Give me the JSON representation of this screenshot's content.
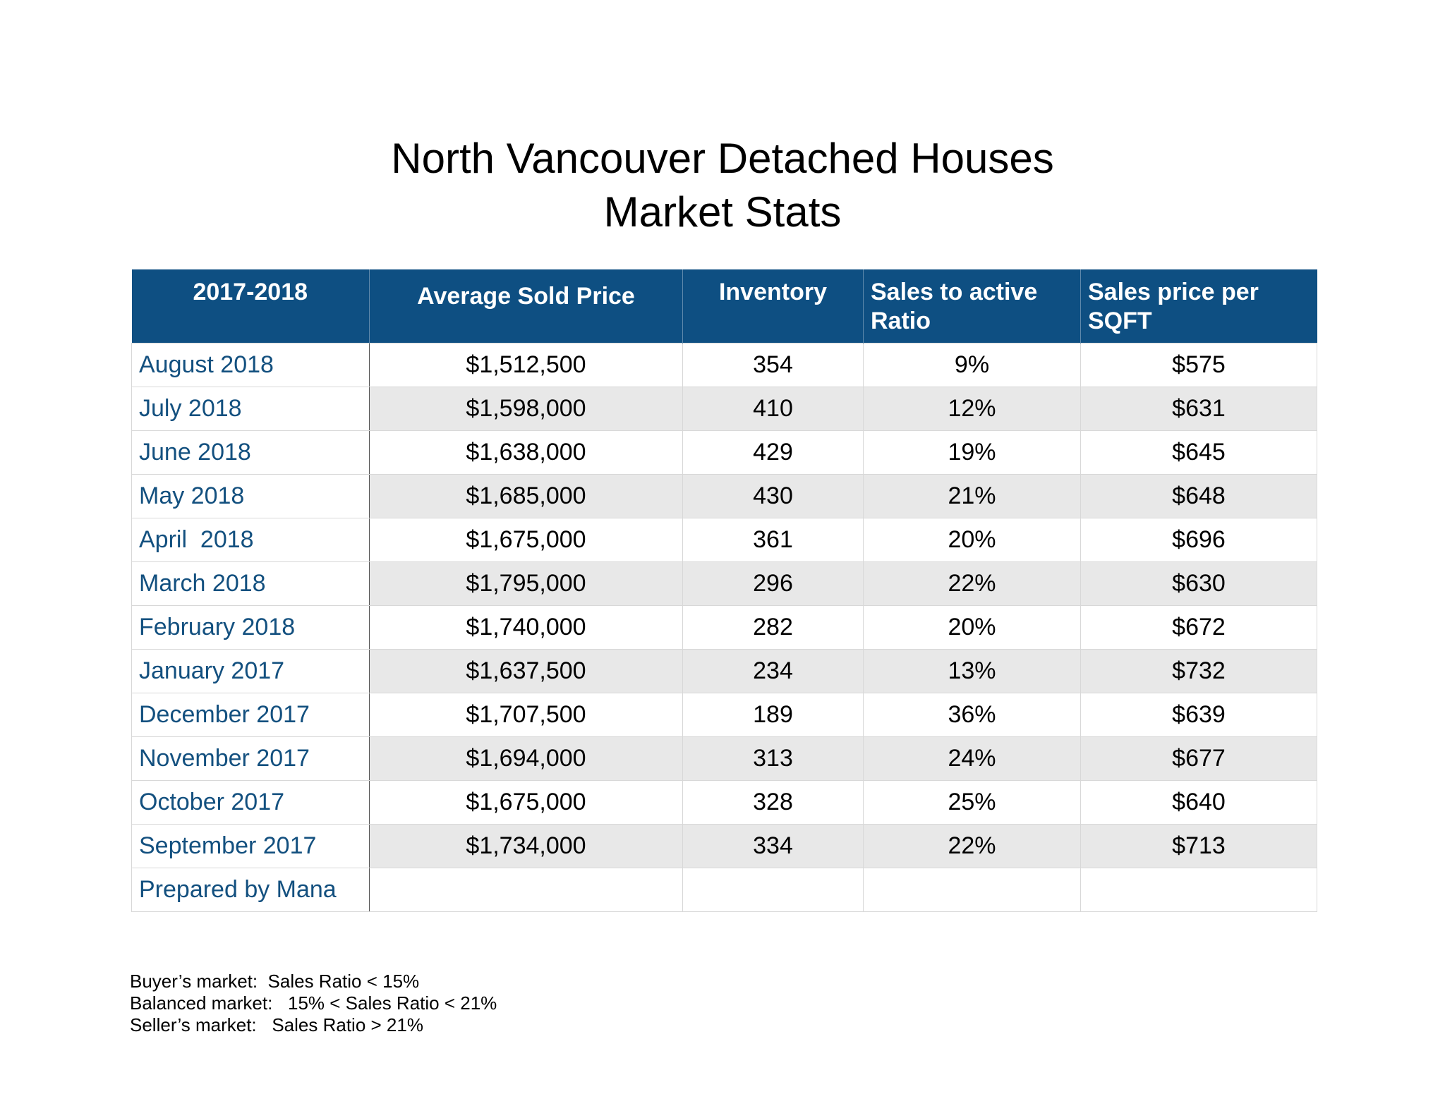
{
  "title": {
    "line1": "North Vancouver Detached Houses",
    "line2": "Market Stats"
  },
  "table": {
    "headers": [
      "2017-2018",
      "Average Sold Price",
      "Inventory",
      "Sales to active Ratio",
      "Sales price per SQFT"
    ],
    "rows": [
      {
        "month": "August 2018",
        "price": "$1,512,500",
        "inventory": "354",
        "ratio": "9%",
        "sqft": "$575"
      },
      {
        "month": "July 2018",
        "price": "$1,598,000",
        "inventory": "410",
        "ratio": "12%",
        "sqft": "$631"
      },
      {
        "month": "June 2018",
        "price": "$1,638,000",
        "inventory": "429",
        "ratio": "19%",
        "sqft": "$645"
      },
      {
        "month": "May 2018",
        "price": "$1,685,000",
        "inventory": "430",
        "ratio": "21%",
        "sqft": "$648"
      },
      {
        "month": "April  2018",
        "price": "$1,675,000",
        "inventory": "361",
        "ratio": "20%",
        "sqft": "$696"
      },
      {
        "month": "March 2018",
        "price": "$1,795,000",
        "inventory": "296",
        "ratio": "22%",
        "sqft": "$630"
      },
      {
        "month": "February 2018",
        "price": "$1,740,000",
        "inventory": "282",
        "ratio": "20%",
        "sqft": "$672"
      },
      {
        "month": "January 2017",
        "price": "$1,637,500",
        "inventory": "234",
        "ratio": "13%",
        "sqft": "$732"
      },
      {
        "month": "December 2017",
        "price": "$1,707,500",
        "inventory": "189",
        "ratio": "36%",
        "sqft": "$639"
      },
      {
        "month": "November 2017",
        "price": "$1,694,000",
        "inventory": "313",
        "ratio": "24%",
        "sqft": "$677"
      },
      {
        "month": "October 2017",
        "price": "$1,675,000",
        "inventory": "328",
        "ratio": "25%",
        "sqft": "$640"
      },
      {
        "month": "September 2017",
        "price": "$1,734,000",
        "inventory": "334",
        "ratio": "22%",
        "sqft": "$713"
      }
    ],
    "footer_label": "Prepared by Mana"
  },
  "notes": [
    "Buyer’s market:  Sales Ratio < 15%",
    "Balanced market:   15% < Sales Ratio < 21%",
    "Seller’s market:   Sales Ratio > 21%"
  ],
  "colors": {
    "header_bg": "#0e4f82",
    "month_text": "#13507f",
    "shaded_row": "#e8e8e8"
  }
}
